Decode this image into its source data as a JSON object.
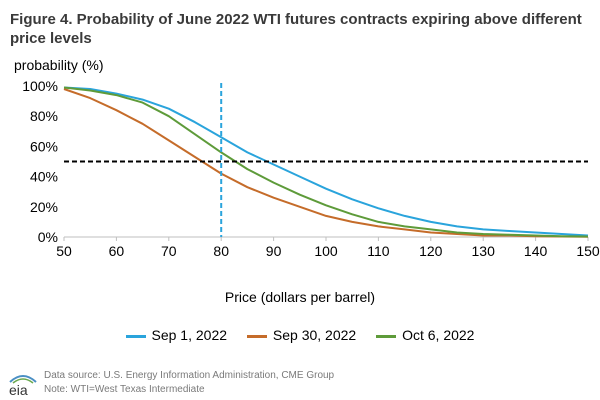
{
  "title": "Figure 4. Probability of June 2022 WTI futures contracts expiring above different price levels",
  "logo_text": "eia",
  "footnotes": {
    "source": "Data source: U.S. Energy Information Administration, CME Group",
    "note": "Note: WTI=West Texas Intermediate"
  },
  "colors": {
    "sep1": "#2aa4dc",
    "sep30": "#c56c2a",
    "oct6": "#5e9b3a",
    "ref_line": "#000000",
    "vline": "#2aa4dc",
    "axis": "#bfbfbf"
  },
  "chart_data": {
    "type": "line",
    "ylabel": "probability (%)",
    "xlabel": "Price (dollars per barrel)",
    "xlim": [
      50,
      150
    ],
    "ylim": [
      0,
      100
    ],
    "xticks": [
      50,
      60,
      70,
      80,
      90,
      100,
      110,
      120,
      130,
      140,
      150
    ],
    "yticks": [
      0,
      20,
      40,
      60,
      80,
      100
    ],
    "ytick_labels": [
      "0%",
      "20%",
      "40%",
      "60%",
      "80%",
      "100%"
    ],
    "reference_lines": {
      "horizontal_y": 50,
      "vertical_x": 80
    },
    "x": [
      50,
      55,
      60,
      65,
      70,
      75,
      80,
      85,
      90,
      95,
      100,
      105,
      110,
      115,
      120,
      125,
      130,
      135,
      140,
      145,
      150
    ],
    "series": [
      {
        "name": "Sep 1, 2022",
        "values": [
          99,
          98,
          95,
          91,
          85,
          76,
          66,
          56,
          48,
          40,
          32,
          25,
          19,
          14,
          10,
          7,
          5,
          4,
          3,
          2,
          1
        ]
      },
      {
        "name": "Sep 30, 2022",
        "values": [
          98,
          92,
          84,
          75,
          64,
          53,
          42,
          33,
          26,
          20,
          14,
          10,
          7,
          5,
          3,
          2,
          1,
          1,
          0.5,
          0.3,
          0.2
        ]
      },
      {
        "name": "Oct 6, 2022",
        "values": [
          99,
          97,
          94,
          89,
          80,
          68,
          56,
          45,
          36,
          28,
          21,
          15,
          10,
          7,
          5,
          3,
          2,
          1.5,
          1,
          0.5,
          0.3
        ]
      }
    ],
    "legend_position": "bottom"
  }
}
